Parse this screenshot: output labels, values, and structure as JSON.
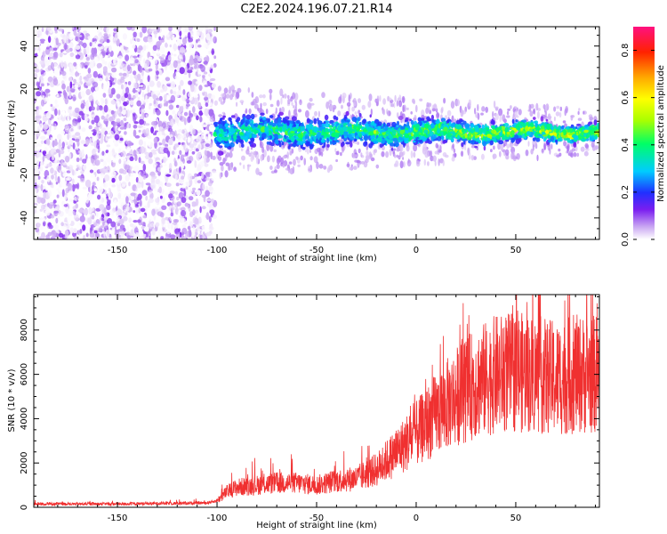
{
  "title": "C2E2.2024.196.07.21.R14",
  "chart_data": [
    {
      "type": "heatmap",
      "name": "spectrogram",
      "xlabel": "Height of straight line (km)",
      "ylabel": "Frequency (Hz)",
      "xlim": [
        -192,
        92
      ],
      "ylim": [
        -50,
        49
      ],
      "xticks": [
        -150,
        -100,
        -50,
        0,
        50
      ],
      "yticks": [
        -40,
        -20,
        0,
        20,
        40
      ],
      "colorbar": {
        "label": "Normalized spectral amplitude",
        "range": [
          0.0,
          0.9
        ],
        "ticks": [
          0.0,
          0.2,
          0.4,
          0.6,
          0.8
        ]
      },
      "regions": [
        {
          "name": "noise",
          "x_range": [
            -192,
            -101
          ],
          "freq_range": [
            -50,
            49
          ],
          "amplitude": [
            0.0,
            0.12
          ]
        },
        {
          "name": "signal-band",
          "x_range": [
            -101,
            92
          ],
          "center_freq": 0,
          "half_width": [
            8,
            4
          ],
          "amplitude": [
            0.15,
            0.55
          ]
        }
      ]
    },
    {
      "type": "line",
      "name": "snr",
      "xlabel": "Height of straight line (km)",
      "ylabel": "SNR (10 * v/v)",
      "xlim": [
        -192,
        92
      ],
      "ylim": [
        0,
        9600
      ],
      "xticks": [
        -150,
        -100,
        -50,
        0,
        50
      ],
      "yticks": [
        0,
        2000,
        4000,
        6000,
        8000
      ],
      "color": "#f03030",
      "trend": {
        "x": [
          -192,
          -150,
          -105,
          -100,
          -95,
          -90,
          -80,
          -70,
          -60,
          -50,
          -40,
          -30,
          -20,
          -10,
          0,
          10,
          20,
          30,
          40,
          50,
          60,
          70,
          80,
          92
        ],
        "y": [
          150,
          150,
          200,
          300,
          700,
          900,
          1000,
          1100,
          1100,
          1000,
          1200,
          1300,
          1700,
          2500,
          3300,
          4200,
          5000,
          5600,
          6000,
          6100,
          6000,
          5800,
          6000,
          6000
        ]
      }
    }
  ]
}
